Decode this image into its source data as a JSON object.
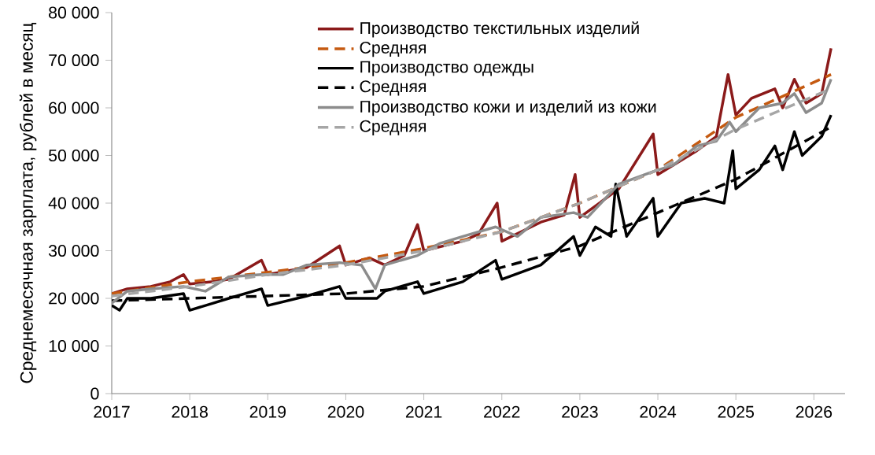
{
  "chart_data": {
    "type": "line",
    "ylabel": "Среднемесячная зарплата, рублей в месяц",
    "xlim": [
      2017,
      2026.4
    ],
    "ylim": [
      0,
      80000
    ],
    "xticks": [
      2017,
      2018,
      2019,
      2020,
      2021,
      2022,
      2023,
      2024,
      2025,
      2026
    ],
    "yticks": [
      {
        "value": 0,
        "label": "0"
      },
      {
        "value": 10000,
        "label": "10 000"
      },
      {
        "value": 20000,
        "label": "20 000"
      },
      {
        "value": 30000,
        "label": "30 000"
      },
      {
        "value": 40000,
        "label": "40 000"
      },
      {
        "value": 50000,
        "label": "50 000"
      },
      {
        "value": 60000,
        "label": "60 000"
      },
      {
        "value": 70000,
        "label": "70 000"
      },
      {
        "value": 80000,
        "label": "80 000"
      }
    ],
    "grid": false,
    "legend": "top",
    "marker": "none",
    "series": [
      {
        "name": "Производство текстильных изделий",
        "color": "#8b1a1a",
        "line_style": "solid",
        "x": [
          2017,
          2017.2,
          2017.5,
          2017.75,
          2017.92,
          2018,
          2018.3,
          2018.5,
          2018.92,
          2019,
          2019.5,
          2019.92,
          2020,
          2020.3,
          2020.5,
          2020.75,
          2020.92,
          2021,
          2021.5,
          2021.7,
          2021.94,
          2022,
          2022.5,
          2022.8,
          2022.94,
          2023,
          2023.5,
          2023.94,
          2024,
          2024.5,
          2024.75,
          2024.9,
          2025,
          2025.2,
          2025.5,
          2025.6,
          2025.75,
          2025.9,
          2026.1,
          2026.22
        ],
        "values": [
          21000,
          22000,
          22500,
          23500,
          25000,
          23000,
          23500,
          24000,
          28000,
          25000,
          26500,
          31000,
          27000,
          28500,
          27000,
          29000,
          35500,
          30000,
          32000,
          33500,
          40000,
          32000,
          36000,
          37500,
          46000,
          37000,
          43000,
          54500,
          46000,
          51000,
          54000,
          67000,
          58500,
          62000,
          64000,
          60000,
          66000,
          61000,
          63000,
          72500
        ]
      },
      {
        "name": "Средняя",
        "color": "#c55a11",
        "line_style": "dashed",
        "x": [
          2017,
          2018,
          2019,
          2020,
          2021,
          2022,
          2023,
          2024,
          2025,
          2026.22
        ],
        "values": [
          21000,
          23500,
          25500,
          27500,
          30500,
          34000,
          40000,
          47000,
          58000,
          67000
        ]
      },
      {
        "name": "Производство одежды",
        "color": "#000000",
        "line_style": "solid",
        "x": [
          2017,
          2017.1,
          2017.2,
          2017.5,
          2017.92,
          2018,
          2018.3,
          2018.5,
          2018.92,
          2019,
          2019.5,
          2019.92,
          2020,
          2020.4,
          2020.5,
          2020.92,
          2021,
          2021.5,
          2021.92,
          2022,
          2022.5,
          2022.92,
          2023,
          2023.2,
          2023.4,
          2023.46,
          2023.6,
          2023.94,
          2024,
          2024.3,
          2024.6,
          2024.85,
          2024.96,
          2025,
          2025.3,
          2025.5,
          2025.6,
          2025.75,
          2025.85,
          2026.1,
          2026.22
        ],
        "values": [
          18500,
          17500,
          20000,
          20000,
          21000,
          17500,
          19000,
          20000,
          22000,
          18500,
          20500,
          22500,
          20000,
          20000,
          21500,
          23500,
          21000,
          23500,
          28000,
          24000,
          27000,
          33000,
          29000,
          35000,
          33000,
          44000,
          33000,
          41000,
          33000,
          40000,
          41000,
          40000,
          51000,
          43000,
          47000,
          52000,
          47000,
          55000,
          50000,
          54000,
          58500
        ]
      },
      {
        "name": "Средняя",
        "color": "#000000",
        "line_style": "dashed",
        "x": [
          2017,
          2018,
          2019,
          2020,
          2021,
          2022,
          2023,
          2024,
          2025,
          2026.22
        ],
        "values": [
          19500,
          20000,
          20500,
          21000,
          22500,
          26500,
          31000,
          38000,
          45000,
          56000
        ]
      },
      {
        "name": "Производство кожи и изделий из кожи",
        "color": "#8c8c8c",
        "line_style": "solid",
        "x": [
          2017,
          2017.2,
          2017.5,
          2017.92,
          2018.2,
          2018.5,
          2018.92,
          2019.2,
          2019.5,
          2019.92,
          2020.2,
          2020.38,
          2020.5,
          2020.92,
          2021.2,
          2021.5,
          2021.92,
          2022.2,
          2022.5,
          2022.92,
          2023.1,
          2023.5,
          2023.92,
          2024.2,
          2024.5,
          2024.75,
          2024.92,
          2025,
          2025.3,
          2025.6,
          2025.75,
          2025.9,
          2026.1,
          2026.22
        ],
        "values": [
          19000,
          21500,
          22000,
          22500,
          21500,
          24500,
          25000,
          25000,
          27000,
          27500,
          27000,
          22000,
          27000,
          29000,
          31500,
          33000,
          35000,
          33000,
          37000,
          38000,
          37000,
          44000,
          46500,
          48000,
          52000,
          53000,
          57000,
          55000,
          60000,
          61000,
          63000,
          59000,
          61000,
          66000
        ]
      },
      {
        "name": "Средняя",
        "color": "#a6a6a6",
        "line_style": "dashed",
        "x": [
          2017,
          2018,
          2019,
          2020,
          2021,
          2022,
          2023,
          2024,
          2025,
          2026.22
        ],
        "values": [
          20500,
          22500,
          25000,
          27000,
          30000,
          34000,
          40000,
          47000,
          55500,
          64000
        ]
      }
    ]
  }
}
